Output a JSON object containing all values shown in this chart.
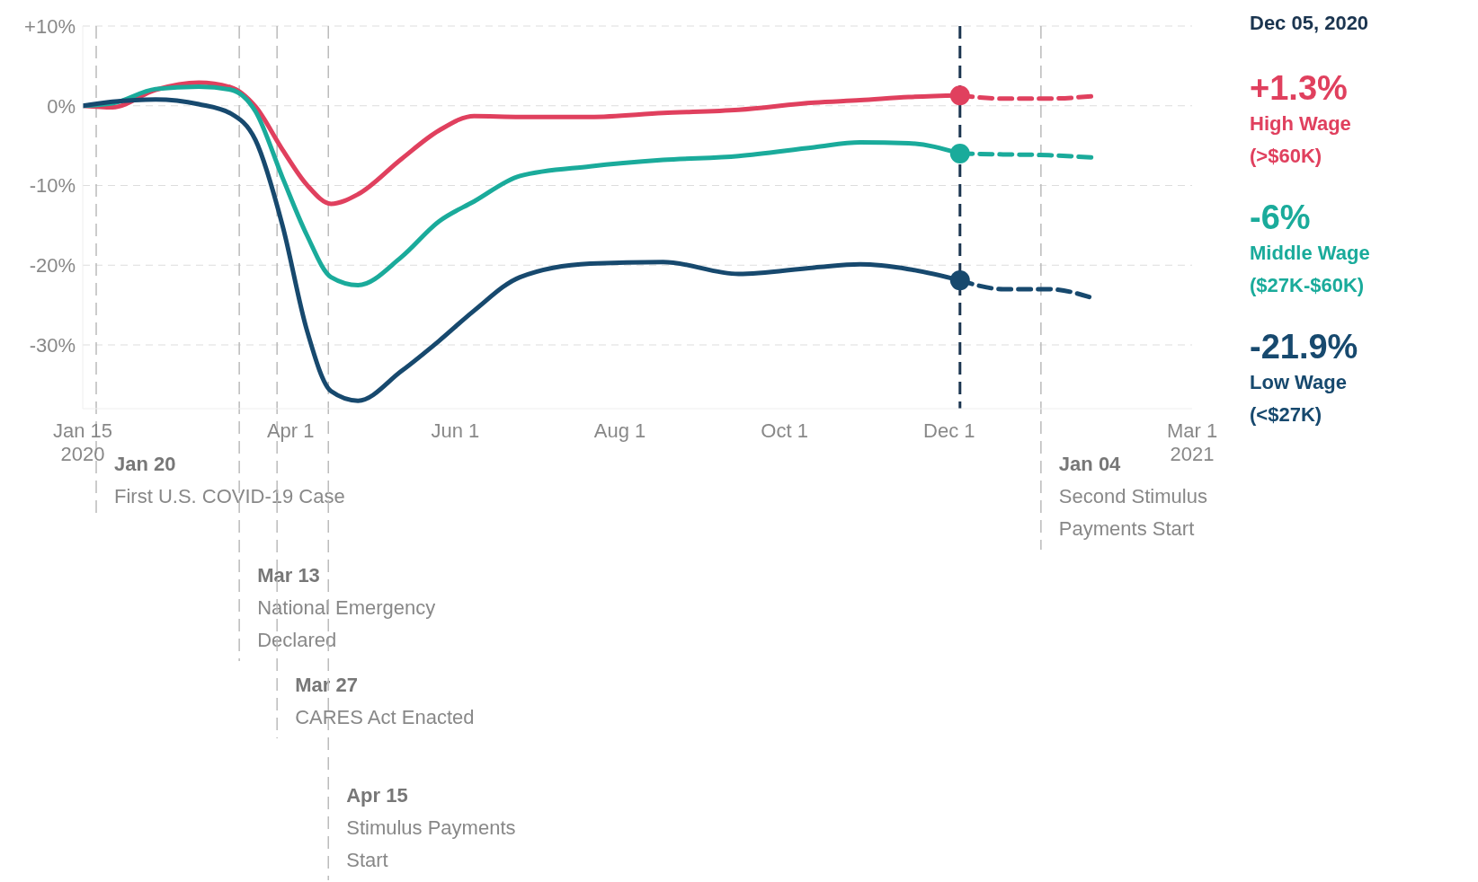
{
  "chart_data": {
    "type": "line",
    "xlim": [
      "2020-01-15",
      "2021-03-01"
    ],
    "xticks": [
      {
        "value": "2020-01-15",
        "label": "Jan 15\n2020"
      },
      {
        "value": "2020-04-01",
        "label": "Apr 1"
      },
      {
        "value": "2020-06-01",
        "label": "Jun 1"
      },
      {
        "value": "2020-08-01",
        "label": "Aug 1"
      },
      {
        "value": "2020-10-01",
        "label": "Oct 1"
      },
      {
        "value": "2020-12-01",
        "label": "Dec 1"
      },
      {
        "value": "2021-03-01",
        "label": "Mar 1\n2021"
      }
    ],
    "ylim": [
      -38,
      10
    ],
    "yticks": [
      {
        "value": 10,
        "label": "+10%"
      },
      {
        "value": 0,
        "label": "0%"
      },
      {
        "value": -10,
        "label": "-10%"
      },
      {
        "value": -20,
        "label": "-20%"
      },
      {
        "value": -30,
        "label": "-30%"
      }
    ],
    "grid": "y",
    "series": [
      {
        "name": "High Wage (>$60K)",
        "line_style": "solid",
        "color": "#e0405e",
        "x": [
          "2020-01-15",
          "2020-01-26",
          "2020-02-11",
          "2020-02-27",
          "2020-03-10",
          "2020-03-19",
          "2020-03-29",
          "2020-04-07",
          "2020-04-16",
          "2020-04-26",
          "2020-05-12",
          "2020-05-26",
          "2020-06-08",
          "2020-06-25",
          "2020-07-21",
          "2020-08-17",
          "2020-09-14",
          "2020-10-12",
          "2020-10-29",
          "2020-11-16",
          "2020-12-05"
        ],
        "values": [
          0,
          -0.2,
          2.0,
          2.9,
          2.3,
          -0.1,
          -5.5,
          -9.9,
          -12.3,
          -11.1,
          -6.7,
          -3.1,
          -1.3,
          -1.4,
          -1.4,
          -0.9,
          -0.5,
          0.4,
          0.7,
          1.1,
          1.3
        ]
      },
      {
        "name": "Middle Wage ($27K-$60K)",
        "line_style": "solid",
        "color": "#1aab9b",
        "x": [
          "2020-01-15",
          "2020-01-26",
          "2020-02-11",
          "2020-02-27",
          "2020-03-10",
          "2020-03-19",
          "2020-03-29",
          "2020-04-07",
          "2020-04-16",
          "2020-04-26",
          "2020-05-12",
          "2020-05-26",
          "2020-06-08",
          "2020-06-25",
          "2020-07-21",
          "2020-08-17",
          "2020-09-14",
          "2020-10-12",
          "2020-10-29",
          "2020-11-16",
          "2020-12-05"
        ],
        "values": [
          0,
          0.3,
          2.1,
          2.4,
          2.0,
          -0.7,
          -9.0,
          -16.2,
          -21.5,
          -22.5,
          -19.0,
          -14.5,
          -12.0,
          -8.8,
          -7.6,
          -6.8,
          -6.3,
          -5.2,
          -4.6,
          -4.7,
          -6.0
        ]
      },
      {
        "name": "Low Wage (<$27K)",
        "line_style": "solid",
        "color": "#17496e",
        "x": [
          "2020-01-15",
          "2020-01-26",
          "2020-02-11",
          "2020-02-27",
          "2020-03-10",
          "2020-03-19",
          "2020-03-29",
          "2020-04-07",
          "2020-04-16",
          "2020-04-26",
          "2020-05-12",
          "2020-05-26",
          "2020-06-08",
          "2020-06-25",
          "2020-07-21",
          "2020-08-17",
          "2020-09-14",
          "2020-10-12",
          "2020-10-29",
          "2020-11-16",
          "2020-12-05"
        ],
        "values": [
          0,
          0.5,
          0.8,
          0.2,
          -1.0,
          -4.3,
          -15.0,
          -28.1,
          -35.8,
          -37.0,
          -33.3,
          -29.5,
          -25.7,
          -21.5,
          -19.8,
          -19.6,
          -21.1,
          -20.3,
          -19.9,
          -20.5,
          -21.9
        ]
      },
      {
        "type": "line",
        "line_style": "dashed",
        "color": "#e0405e",
        "x": [
          "2020-12-05",
          "2020-12-21",
          "2021-01-07",
          "2021-01-23"
        ],
        "values": [
          1.3,
          0.9,
          0.9,
          1.2
        ]
      },
      {
        "type": "line",
        "line_style": "dashed",
        "color": "#1aab9b",
        "x": [
          "2020-12-05",
          "2020-12-21",
          "2021-01-07",
          "2021-01-23"
        ],
        "values": [
          -6.0,
          -6.1,
          -6.2,
          -6.5
        ]
      },
      {
        "type": "line",
        "line_style": "dashed",
        "color": "#17496e",
        "x": [
          "2020-12-05",
          "2020-12-21",
          "2021-01-07",
          "2021-01-23"
        ],
        "values": [
          -21.9,
          -23.0,
          -23.0,
          -24.1
        ]
      },
      {
        "type": "scatter",
        "marker": "circle",
        "color": "#e0405e",
        "x": [
          "2020-12-05"
        ],
        "values": [
          1.3
        ]
      },
      {
        "type": "scatter",
        "marker": "circle",
        "color": "#1aab9b",
        "x": [
          "2020-12-05"
        ],
        "values": [
          -6.0
        ]
      },
      {
        "type": "scatter",
        "marker": "circle",
        "color": "#17496e",
        "x": [
          "2020-12-05"
        ],
        "values": [
          -21.9
        ]
      }
    ],
    "ref_lines": [
      {
        "axis": "x",
        "value": "2020-01-20",
        "label": "Jan 20\nFirst U.S. COVID-19 Case",
        "color": "#bbbbbb",
        "line_style": "dashed"
      },
      {
        "axis": "x",
        "value": "2020-03-13",
        "label": "Mar 13\nNational Emergency\nDeclared",
        "color": "#bbbbbb",
        "line_style": "dashed"
      },
      {
        "axis": "x",
        "value": "2020-03-27",
        "label": "Mar 27\nCARES Act Enacted",
        "color": "#bbbbbb",
        "line_style": "dashed"
      },
      {
        "axis": "x",
        "value": "2020-04-15",
        "label": "Apr 15\nStimulus Payments\nStart",
        "color": "#bbbbbb",
        "line_style": "dashed"
      },
      {
        "axis": "x",
        "value": "2021-01-04",
        "label": "Jan 04\nSecond Stimulus\nPayments Start",
        "color": "#bbbbbb",
        "line_style": "dashed"
      },
      {
        "axis": "x",
        "value": "2020-12-05",
        "color": "#1b3550",
        "line_style": "dashed"
      }
    ],
    "annotations": [
      "Dec 05, 2020",
      "+1.3%",
      "-6%",
      "-21.9%"
    ]
  }
}
